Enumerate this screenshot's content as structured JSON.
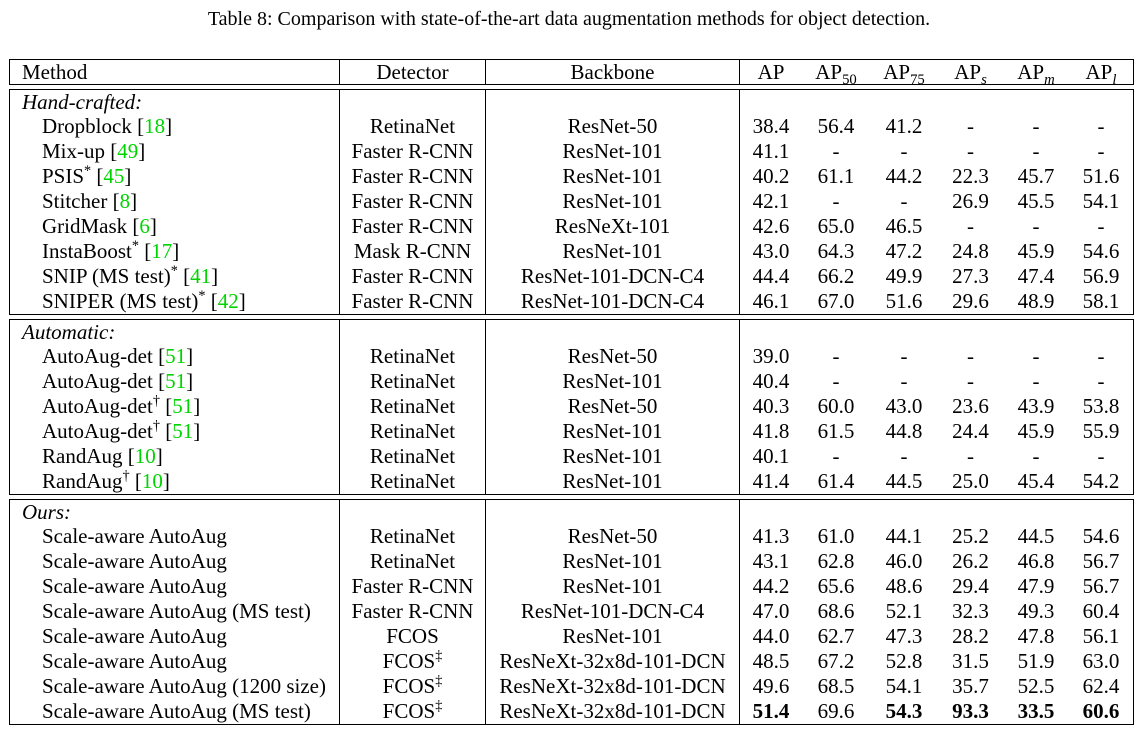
{
  "caption": "Table 8: Comparison with state-of-the-art data augmentation methods for object detection.",
  "colors": {
    "cite": "#00d400",
    "text": "#000000"
  },
  "citation_brackets": {
    "open": "[",
    "close": "]"
  },
  "header": {
    "method": "Method",
    "detector": "Detector",
    "backbone": "Backbone",
    "metrics": [
      {
        "base": "AP"
      },
      {
        "base": "AP",
        "sub": "50"
      },
      {
        "base": "AP",
        "sub": "75"
      },
      {
        "base": "AP",
        "sub": "s"
      },
      {
        "base": "AP",
        "sub": "m"
      },
      {
        "base": "AP",
        "sub": "l"
      }
    ]
  },
  "sections": [
    {
      "heading": "Hand-crafted:",
      "rows": [
        {
          "method": "Dropblock",
          "cite": "18",
          "detector": "RetinaNet",
          "backbone": "ResNet-50",
          "values": [
            "38.4",
            "56.4",
            "41.2",
            "-",
            "-",
            "-"
          ]
        },
        {
          "method": "Mix-up",
          "cite": "49",
          "detector": "Faster R-CNN",
          "backbone": "ResNet-101",
          "values": [
            "41.1",
            "-",
            "-",
            "-",
            "-",
            "-"
          ]
        },
        {
          "method": "PSIS",
          "mark": "*",
          "cite": "45",
          "detector": "Faster R-CNN",
          "backbone": "ResNet-101",
          "values": [
            "40.2",
            "61.1",
            "44.2",
            "22.3",
            "45.7",
            "51.6"
          ]
        },
        {
          "method": "Stitcher",
          "cite": "8",
          "detector": "Faster R-CNN",
          "backbone": "ResNet-101",
          "values": [
            "42.1",
            "-",
            "-",
            "26.9",
            "45.5",
            "54.1"
          ]
        },
        {
          "method": "GridMask",
          "cite": "6",
          "detector": "Faster R-CNN",
          "backbone": "ResNeXt-101",
          "values": [
            "42.6",
            "65.0",
            "46.5",
            "-",
            "-",
            "-"
          ]
        },
        {
          "method": "InstaBoost",
          "mark": "*",
          "cite": "17",
          "detector": "Mask R-CNN",
          "backbone": "ResNet-101",
          "values": [
            "43.0",
            "64.3",
            "47.2",
            "24.8",
            "45.9",
            "54.6"
          ]
        },
        {
          "method": "SNIP (MS test)",
          "mark": "*",
          "cite": "41",
          "detector": "Faster R-CNN",
          "backbone": "ResNet-101-DCN-C4",
          "values": [
            "44.4",
            "66.2",
            "49.9",
            "27.3",
            "47.4",
            "56.9"
          ]
        },
        {
          "method": "SNIPER (MS test)",
          "mark": "*",
          "cite": "42",
          "detector": "Faster R-CNN",
          "backbone": "ResNet-101-DCN-C4",
          "values": [
            "46.1",
            "67.0",
            "51.6",
            "29.6",
            "48.9",
            "58.1"
          ]
        }
      ]
    },
    {
      "heading": "Automatic:",
      "rows": [
        {
          "method": "AutoAug-det",
          "cite": "51",
          "detector": "RetinaNet",
          "backbone": "ResNet-50",
          "values": [
            "39.0",
            "-",
            "-",
            "-",
            "-",
            "-"
          ]
        },
        {
          "method": "AutoAug-det",
          "cite": "51",
          "detector": "RetinaNet",
          "backbone": "ResNet-101",
          "values": [
            "40.4",
            "-",
            "-",
            "-",
            "-",
            "-"
          ]
        },
        {
          "method": "AutoAug-det",
          "mark": "†",
          "cite": "51",
          "detector": "RetinaNet",
          "backbone": "ResNet-50",
          "values": [
            "40.3",
            "60.0",
            "43.0",
            "23.6",
            "43.9",
            "53.8"
          ]
        },
        {
          "method": "AutoAug-det",
          "mark": "†",
          "cite": "51",
          "detector": "RetinaNet",
          "backbone": "ResNet-101",
          "values": [
            "41.8",
            "61.5",
            "44.8",
            "24.4",
            "45.9",
            "55.9"
          ]
        },
        {
          "method": "RandAug",
          "cite": "10",
          "detector": "RetinaNet",
          "backbone": "ResNet-101",
          "values": [
            "40.1",
            "-",
            "-",
            "-",
            "-",
            "-"
          ]
        },
        {
          "method": "RandAug",
          "mark": "†",
          "cite": "10",
          "detector": "RetinaNet",
          "backbone": "ResNet-101",
          "values": [
            "41.4",
            "61.4",
            "44.5",
            "25.0",
            "45.4",
            "54.2"
          ]
        }
      ]
    },
    {
      "heading": "Ours:",
      "rows": [
        {
          "method": "Scale-aware AutoAug",
          "detector": "RetinaNet",
          "backbone": "ResNet-50",
          "values": [
            "41.3",
            "61.0",
            "44.1",
            "25.2",
            "44.5",
            "54.6"
          ]
        },
        {
          "method": "Scale-aware AutoAug",
          "detector": "RetinaNet",
          "backbone": "ResNet-101",
          "values": [
            "43.1",
            "62.8",
            "46.0",
            "26.2",
            "46.8",
            "56.7"
          ]
        },
        {
          "method": "Scale-aware AutoAug",
          "detector": "Faster R-CNN",
          "backbone": "ResNet-101",
          "values": [
            "44.2",
            "65.6",
            "48.6",
            "29.4",
            "47.9",
            "56.7"
          ]
        },
        {
          "method": "Scale-aware AutoAug (MS test)",
          "detector": "Faster R-CNN",
          "backbone": "ResNet-101-DCN-C4",
          "values": [
            "47.0",
            "68.6",
            "52.1",
            "32.3",
            "49.3",
            "60.4"
          ]
        },
        {
          "method": "Scale-aware AutoAug",
          "detector": "FCOS",
          "backbone": "ResNet-101",
          "values": [
            "44.0",
            "62.7",
            "47.3",
            "28.2",
            "47.8",
            "56.1"
          ]
        },
        {
          "method": "Scale-aware AutoAug",
          "detector": "FCOS",
          "detector_mark": "‡",
          "backbone": "ResNeXt-32x8d-101-DCN",
          "values": [
            "48.5",
            "67.2",
            "52.8",
            "31.5",
            "51.9",
            "63.0"
          ]
        },
        {
          "method": "Scale-aware AutoAug (1200 size)",
          "detector": "FCOS",
          "detector_mark": "‡",
          "backbone": "ResNeXt-32x8d-101-DCN",
          "values": [
            "49.6",
            "68.5",
            "54.1",
            "35.7",
            "52.5",
            "62.4"
          ]
        },
        {
          "method": "Scale-aware AutoAug (MS test)",
          "detector": "FCOS",
          "detector_mark": "‡",
          "backbone": "ResNeXt-32x8d-101-DCN",
          "values": [
            "51.4",
            "69.6",
            "54.3",
            "93.3",
            "33.5",
            "60.6"
          ],
          "bold": [
            0,
            2,
            3,
            4,
            5
          ]
        }
      ]
    }
  ]
}
